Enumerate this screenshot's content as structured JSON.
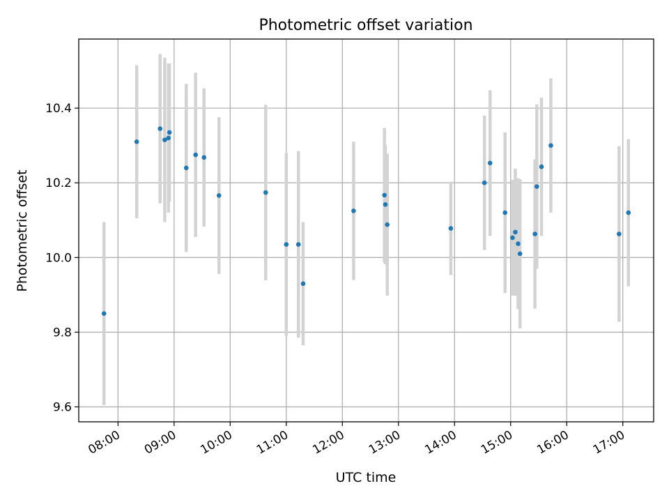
{
  "chart_data": {
    "type": "scatter",
    "title": "Photometric offset variation",
    "xlabel": "UTC time",
    "ylabel": "Photometric offset",
    "xlim": [
      "07:18",
      "17:33"
    ],
    "ylim": [
      9.56,
      10.585
    ],
    "x_ticks": [
      "08:00",
      "09:00",
      "10:00",
      "11:00",
      "12:00",
      "13:00",
      "14:00",
      "15:00",
      "16:00",
      "17:00"
    ],
    "y_ticks": [
      "9.6",
      "9.8",
      "10.0",
      "10.2",
      "10.4"
    ],
    "grid": true,
    "marker_color": "#1f77b4",
    "errorbar_color": "#d3d3d3",
    "points": [
      {
        "x": "07:45",
        "y": 9.85,
        "yerr": 0.245
      },
      {
        "x": "08:20",
        "y": 10.31,
        "yerr": 0.205
      },
      {
        "x": "08:45",
        "y": 10.345,
        "yerr": 0.2
      },
      {
        "x": "08:50",
        "y": 10.315,
        "yerr": 0.22
      },
      {
        "x": "08:54",
        "y": 10.32,
        "yerr": 0.2
      },
      {
        "x": "08:55",
        "y": 10.335,
        "yerr": 0.185
      },
      {
        "x": "09:13",
        "y": 10.24,
        "yerr": 0.225
      },
      {
        "x": "09:23",
        "y": 10.275,
        "yerr": 0.22
      },
      {
        "x": "09:32",
        "y": 10.268,
        "yerr": 0.185
      },
      {
        "x": "09:48",
        "y": 10.166,
        "yerr": 0.21
      },
      {
        "x": "10:38",
        "y": 10.174,
        "yerr": 0.235
      },
      {
        "x": "11:00",
        "y": 10.035,
        "yerr": 0.245
      },
      {
        "x": "11:13",
        "y": 10.035,
        "yerr": 0.25
      },
      {
        "x": "11:18",
        "y": 9.93,
        "yerr": 0.165
      },
      {
        "x": "12:12",
        "y": 10.125,
        "yerr": 0.185
      },
      {
        "x": "12:45",
        "y": 10.167,
        "yerr": 0.18
      },
      {
        "x": "12:46",
        "y": 10.142,
        "yerr": 0.16
      },
      {
        "x": "12:48",
        "y": 10.088,
        "yerr": 0.19
      },
      {
        "x": "13:56",
        "y": 10.078,
        "yerr": 0.125
      },
      {
        "x": "14:32",
        "y": 10.2,
        "yerr": 0.18
      },
      {
        "x": "14:38",
        "y": 10.253,
        "yerr": 0.195
      },
      {
        "x": "14:54",
        "y": 10.12,
        "yerr": 0.215
      },
      {
        "x": "15:02",
        "y": 10.053,
        "yerr": 0.155
      },
      {
        "x": "15:05",
        "y": 10.068,
        "yerr": 0.17
      },
      {
        "x": "15:08",
        "y": 10.037,
        "yerr": 0.175
      },
      {
        "x": "15:10",
        "y": 10.01,
        "yerr": 0.2
      },
      {
        "x": "15:26",
        "y": 10.063,
        "yerr": 0.2
      },
      {
        "x": "15:28",
        "y": 10.19,
        "yerr": 0.22
      },
      {
        "x": "15:33",
        "y": 10.243,
        "yerr": 0.185
      },
      {
        "x": "15:43",
        "y": 10.3,
        "yerr": 0.18
      },
      {
        "x": "16:56",
        "y": 10.063,
        "yerr": 0.235
      },
      {
        "x": "17:06",
        "y": 10.12,
        "yerr": 0.197
      }
    ]
  }
}
